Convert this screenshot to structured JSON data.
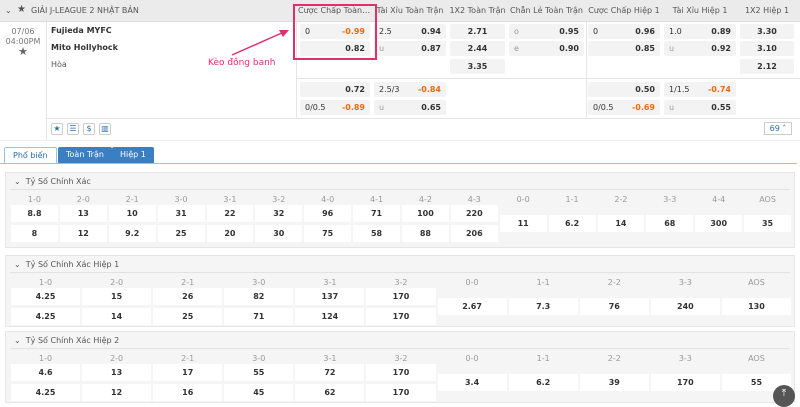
{
  "league": {
    "name": "GIẢI J-LEAGUE 2 NHẬT BẢN"
  },
  "columns": [
    "Cược Chấp Toàn Tr...",
    "Tài Xỉu Toàn Trận",
    "1X2 Toàn Trận",
    "Chẵn Lẻ Toàn Trận",
    "Cược Chấp Hiệp 1",
    "Tài Xỉu Hiệp 1",
    "1X2 Hiệp 1"
  ],
  "match": {
    "date": "07/06",
    "time": "04:00PM",
    "home": "Fujieda MYFC",
    "away": "Mito Hollyhock",
    "draw": "Hòa",
    "more_count": "69"
  },
  "annotation": {
    "text": "Kèo đồng banh",
    "color": "#e0306a"
  },
  "odds": {
    "main": [
      {
        "hc": {
          "l": "0",
          "r": "-0.99"
        },
        "ou": {
          "l": "2.5",
          "r": "0.94"
        },
        "x12": "2.71",
        "oe": {
          "l": "o",
          "r": "0.95"
        },
        "hc1": {
          "l": "0",
          "r": "0.96"
        },
        "ou1": {
          "l": "1.0",
          "r": "0.89"
        },
        "x121": "3.30"
      },
      {
        "hc": {
          "l": "",
          "r": "0.82"
        },
        "ou": {
          "l": "u",
          "r": "0.87"
        },
        "x12": "2.44",
        "oe": {
          "l": "e",
          "r": "0.90"
        },
        "hc1": {
          "l": "",
          "r": "0.85"
        },
        "ou1": {
          "l": "u",
          "r": "0.92"
        },
        "x121": "3.10"
      },
      {
        "x12": "3.35",
        "x121": "2.12"
      }
    ],
    "alt": [
      {
        "hc": {
          "l": "",
          "r": "0.72"
        },
        "ou": {
          "l": "2.5/3",
          "r": "-0.84"
        },
        "hc1": {
          "l": "",
          "r": "0.50"
        },
        "ou1": {
          "l": "1/1.5",
          "r": "-0.74"
        }
      },
      {
        "hc": {
          "l": "0/0.5",
          "r": "-0.89"
        },
        "ou": {
          "l": "u",
          "r": "0.65"
        },
        "hc1": {
          "l": "0/0.5",
          "r": "-0.69"
        },
        "ou1": {
          "l": "u",
          "r": "0.55"
        }
      }
    ]
  },
  "tabs": [
    "Phổ biến",
    "Toàn Trận",
    "Hiệp 1"
  ],
  "sections": [
    {
      "title": "Tỷ Số Chính Xác",
      "labels": [
        "1-0",
        "2-0",
        "2-1",
        "3-0",
        "3-1",
        "3-2",
        "4-0",
        "4-1",
        "4-2",
        "4-3"
      ],
      "row1": [
        "8.8",
        "13",
        "10",
        "31",
        "22",
        "32",
        "96",
        "71",
        "100",
        "220"
      ],
      "row2": [
        "8",
        "12",
        "9.2",
        "25",
        "20",
        "30",
        "75",
        "58",
        "88",
        "206"
      ],
      "draw_labels": [
        "0-0",
        "1-1",
        "2-2",
        "3-3",
        "4-4",
        "AOS"
      ],
      "draws": [
        "11",
        "6.2",
        "14",
        "68",
        "300",
        "35"
      ]
    },
    {
      "title": "Tỷ Số Chính Xác Hiệp 1",
      "labels": [
        "1-0",
        "2-0",
        "2-1",
        "3-0",
        "3-1",
        "3-2"
      ],
      "row1": [
        "4.25",
        "15",
        "26",
        "82",
        "137",
        "170"
      ],
      "row2": [
        "4.25",
        "14",
        "25",
        "71",
        "124",
        "170"
      ],
      "draw_labels": [
        "0-0",
        "1-1",
        "2-2",
        "3-3",
        "AOS"
      ],
      "draws": [
        "2.67",
        "7.3",
        "76",
        "240",
        "130"
      ]
    },
    {
      "title": "Tỷ Số Chính Xác Hiệp 2",
      "labels": [
        "1-0",
        "2-0",
        "2-1",
        "3-0",
        "3-1",
        "3-2"
      ],
      "row1": [
        "4.6",
        "13",
        "17",
        "55",
        "72",
        "170"
      ],
      "row2": [
        "4.25",
        "12",
        "16",
        "45",
        "62",
        "170"
      ],
      "draw_labels": [
        "0-0",
        "1-1",
        "2-2",
        "3-3",
        "AOS"
      ],
      "draws": [
        "3.4",
        "6.2",
        "39",
        "170",
        "55"
      ]
    }
  ]
}
